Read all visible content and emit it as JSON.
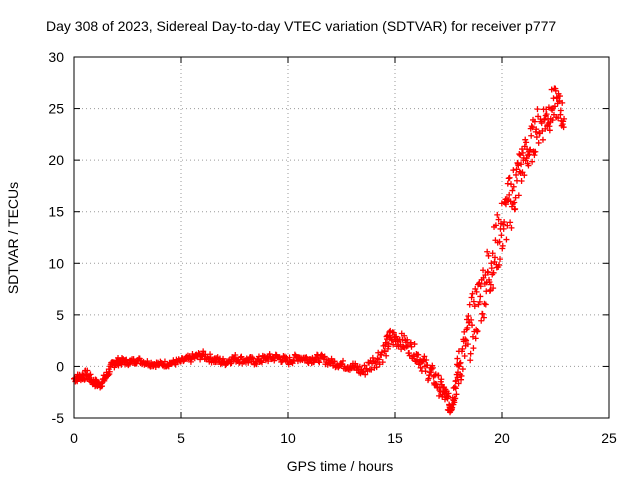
{
  "chart_data": {
    "type": "scatter",
    "title": "Day 308 of 2023, Sidereal Day-to-day VTEC variation (SDTVAR) for receiver p777",
    "xlabel": "GPS time / hours",
    "ylabel": "SDTVAR / TECUs",
    "xlim": [
      0,
      25
    ],
    "ylim": [
      -5,
      30
    ],
    "xticks": [
      0,
      5,
      10,
      15,
      20,
      25
    ],
    "yticks": [
      -5,
      0,
      5,
      10,
      15,
      20,
      25,
      30
    ],
    "grid": true,
    "marker": "+",
    "color": "#ff0000",
    "series": [
      {
        "name": "SDTVAR",
        "x": [
          0.0,
          0.3,
          0.6,
          0.9,
          1.2,
          1.5,
          1.8,
          2.1,
          2.5,
          3.0,
          3.5,
          4.0,
          4.5,
          5.0,
          5.5,
          6.0,
          6.5,
          7.0,
          7.5,
          8.0,
          8.5,
          9.0,
          9.5,
          10.0,
          10.5,
          11.0,
          11.5,
          12.0,
          12.5,
          13.0,
          13.5,
          14.0,
          14.5,
          14.8,
          15.2,
          15.6,
          16.0,
          16.4,
          16.8,
          17.1,
          17.4,
          17.6,
          17.8,
          18.0,
          18.3,
          18.6,
          18.9,
          19.2,
          19.5,
          19.8,
          20.1,
          20.4,
          20.7,
          21.0,
          21.3,
          21.6,
          22.0,
          22.3,
          22.6,
          22.9
        ],
        "y": [
          -1.2,
          -1.0,
          -0.8,
          -1.5,
          -1.8,
          -1.0,
          0.2,
          0.5,
          0.4,
          0.6,
          0.3,
          0.2,
          0.3,
          0.5,
          0.8,
          1.1,
          0.7,
          0.4,
          0.8,
          0.6,
          0.5,
          0.8,
          0.9,
          0.5,
          0.9,
          0.7,
          0.8,
          0.4,
          0.2,
          0.0,
          -0.5,
          0.5,
          1.5,
          2.8,
          2.6,
          2.0,
          1.2,
          0.0,
          -1.0,
          -2.0,
          -3.0,
          -4.0,
          -2.0,
          0.0,
          2.0,
          4.0,
          6.0,
          8.0,
          10.0,
          12.0,
          14.0,
          16.0,
          18.0,
          20.0,
          21.0,
          23.0,
          24.0,
          25.0,
          25.5,
          24.0
        ],
        "spread": [
          0.4,
          0.4,
          0.5,
          0.4,
          0.4,
          0.5,
          0.4,
          0.4,
          0.3,
          0.3,
          0.3,
          0.3,
          0.3,
          0.3,
          0.4,
          0.4,
          0.4,
          0.4,
          0.4,
          0.4,
          0.4,
          0.4,
          0.4,
          0.4,
          0.4,
          0.4,
          0.4,
          0.4,
          0.4,
          0.5,
          0.6,
          0.8,
          1.0,
          1.0,
          0.8,
          0.8,
          0.8,
          1.0,
          1.0,
          1.0,
          1.0,
          0.8,
          1.5,
          2.0,
          2.5,
          3.0,
          3.0,
          3.0,
          3.0,
          3.0,
          3.0,
          3.0,
          3.0,
          2.0,
          2.0,
          2.0,
          2.0,
          2.0,
          1.5,
          1.5
        ]
      }
    ]
  }
}
